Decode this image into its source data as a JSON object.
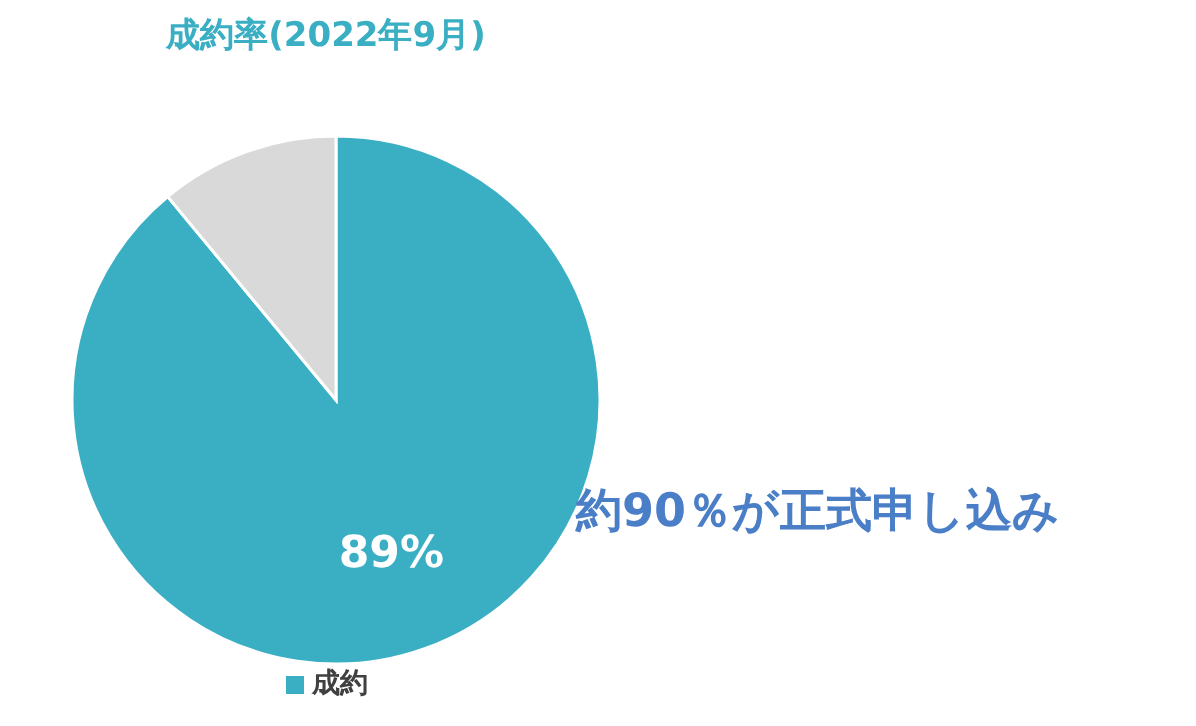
{
  "chart_data": {
    "type": "pie",
    "title": "成約率(2022年9月)",
    "categories": [
      "成約",
      null
    ],
    "values": [
      89,
      11
    ],
    "colors": [
      "#3aafc4",
      "#d9d9d9"
    ],
    "value_labels": [
      "89%",
      null
    ],
    "legend": "bottom",
    "annotations": [
      "約90％が正式申し込み"
    ]
  }
}
